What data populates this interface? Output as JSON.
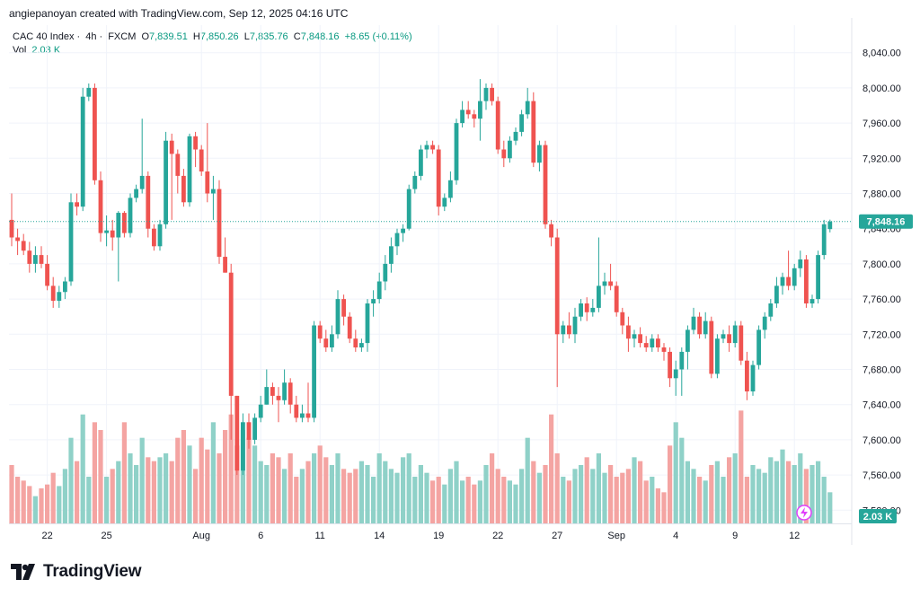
{
  "header": {
    "author": "angiepanoyan",
    "credit": "created with TradingView.com, Sep 12, 2025 04:16 UTC"
  },
  "legend": {
    "symbol": "CAC 40 Index",
    "interval": "4h",
    "source": "FXCM",
    "open_label": "O",
    "open": "7,839.51",
    "high_label": "H",
    "high": "7,850.26",
    "low_label": "L",
    "low": "7,835.76",
    "close_label": "C",
    "close": "7,848.16",
    "change": "+8.65 (+0.11%)",
    "vol_label": "Vol",
    "vol": "2.03 K"
  },
  "footer": {
    "brand": "TradingView"
  },
  "colors": {
    "up": "#26a69a",
    "down": "#ef5350",
    "up_vol": "#8fd1c8",
    "down_vol": "#f4a4a2",
    "grid": "#f0f3fa",
    "text": "#131722"
  },
  "chart_data": {
    "type": "candlestick",
    "instrument": "CAC 40 Index · 4h · FXCM",
    "ylim": [
      7505,
      8060
    ],
    "y_ticks": [
      7520,
      7560,
      7600,
      7640,
      7680,
      7720,
      7760,
      7800,
      7840,
      7880,
      7920,
      7960,
      8000,
      8040
    ],
    "y_tick_labels": [
      "7,520.00",
      "7,560.00",
      "7,600.00",
      "7,640.00",
      "7,680.00",
      "7,720.00",
      "7,760.00",
      "7,800.00",
      "7,840.00",
      "7,880.00",
      "7,920.00",
      "7,960.00",
      "8,000.00",
      "8,040.00"
    ],
    "x_tick_labels": [
      {
        "label": "22",
        "bar": 6
      },
      {
        "label": "25",
        "bar": 16
      },
      {
        "label": "Aug",
        "bar": 32
      },
      {
        "label": "6",
        "bar": 42
      },
      {
        "label": "11",
        "bar": 52
      },
      {
        "label": "14",
        "bar": 62
      },
      {
        "label": "19",
        "bar": 72
      },
      {
        "label": "22",
        "bar": 82
      },
      {
        "label": "27",
        "bar": 92
      },
      {
        "label": "Sep",
        "bar": 102
      },
      {
        "label": "4",
        "bar": 112
      },
      {
        "label": "9",
        "bar": 122
      },
      {
        "label": "12",
        "bar": 132
      }
    ],
    "last_price": 7848.16,
    "last_price_label": "7,848.16",
    "last_volume_label": "2.03 K",
    "grid": true,
    "candles": [
      {
        "o": 7850,
        "h": 7880,
        "l": 7820,
        "c": 7830,
        "v": 75
      },
      {
        "o": 7830,
        "h": 7840,
        "l": 7810,
        "c": 7826,
        "v": 60
      },
      {
        "o": 7826,
        "h": 7834,
        "l": 7810,
        "c": 7815,
        "v": 55
      },
      {
        "o": 7815,
        "h": 7825,
        "l": 7790,
        "c": 7800,
        "v": 48
      },
      {
        "o": 7800,
        "h": 7820,
        "l": 7790,
        "c": 7810,
        "v": 35
      },
      {
        "o": 7810,
        "h": 7820,
        "l": 7795,
        "c": 7800,
        "v": 45
      },
      {
        "o": 7800,
        "h": 7810,
        "l": 7770,
        "c": 7775,
        "v": 50
      },
      {
        "o": 7775,
        "h": 7785,
        "l": 7750,
        "c": 7758,
        "v": 65
      },
      {
        "o": 7758,
        "h": 7775,
        "l": 7750,
        "c": 7768,
        "v": 48
      },
      {
        "o": 7768,
        "h": 7785,
        "l": 7760,
        "c": 7780,
        "v": 70
      },
      {
        "o": 7780,
        "h": 7880,
        "l": 7775,
        "c": 7870,
        "v": 110
      },
      {
        "o": 7870,
        "h": 7880,
        "l": 7855,
        "c": 7865,
        "v": 80
      },
      {
        "o": 7865,
        "h": 8000,
        "l": 7860,
        "c": 7990,
        "v": 140
      },
      {
        "o": 7990,
        "h": 8005,
        "l": 7985,
        "c": 8000,
        "v": 60
      },
      {
        "o": 8000,
        "h": 8005,
        "l": 7890,
        "c": 7895,
        "v": 130
      },
      {
        "o": 7895,
        "h": 7905,
        "l": 7825,
        "c": 7835,
        "v": 120
      },
      {
        "o": 7835,
        "h": 7855,
        "l": 7820,
        "c": 7838,
        "v": 60
      },
      {
        "o": 7838,
        "h": 7850,
        "l": 7815,
        "c": 7830,
        "v": 70
      },
      {
        "o": 7830,
        "h": 7860,
        "l": 7780,
        "c": 7858,
        "v": 80
      },
      {
        "o": 7858,
        "h": 7860,
        "l": 7830,
        "c": 7835,
        "v": 130
      },
      {
        "o": 7835,
        "h": 7880,
        "l": 7830,
        "c": 7875,
        "v": 90
      },
      {
        "o": 7875,
        "h": 7890,
        "l": 7870,
        "c": 7885,
        "v": 75
      },
      {
        "o": 7885,
        "h": 7965,
        "l": 7880,
        "c": 7900,
        "v": 110
      },
      {
        "o": 7900,
        "h": 7905,
        "l": 7830,
        "c": 7840,
        "v": 85
      },
      {
        "o": 7840,
        "h": 7845,
        "l": 7815,
        "c": 7820,
        "v": 80
      },
      {
        "o": 7820,
        "h": 7850,
        "l": 7815,
        "c": 7845,
        "v": 85
      },
      {
        "o": 7845,
        "h": 7950,
        "l": 7840,
        "c": 7940,
        "v": 90
      },
      {
        "o": 7940,
        "h": 7948,
        "l": 7850,
        "c": 7925,
        "v": 80
      },
      {
        "o": 7925,
        "h": 7930,
        "l": 7880,
        "c": 7900,
        "v": 110
      },
      {
        "o": 7900,
        "h": 7908,
        "l": 7865,
        "c": 7870,
        "v": 120
      },
      {
        "o": 7870,
        "h": 7948,
        "l": 7865,
        "c": 7945,
        "v": 100
      },
      {
        "o": 7945,
        "h": 7950,
        "l": 7910,
        "c": 7930,
        "v": 70
      },
      {
        "o": 7930,
        "h": 7935,
        "l": 7900,
        "c": 7905,
        "v": 110
      },
      {
        "o": 7905,
        "h": 7960,
        "l": 7870,
        "c": 7880,
        "v": 95
      },
      {
        "o": 7880,
        "h": 7900,
        "l": 7850,
        "c": 7885,
        "v": 130
      },
      {
        "o": 7885,
        "h": 7895,
        "l": 7800,
        "c": 7808,
        "v": 90
      },
      {
        "o": 7808,
        "h": 7830,
        "l": 7790,
        "c": 7790,
        "v": 120
      },
      {
        "o": 7790,
        "h": 7800,
        "l": 7600,
        "c": 7650,
        "v": 140
      },
      {
        "o": 7650,
        "h": 7650,
        "l": 7560,
        "c": 7565,
        "v": 100
      },
      {
        "o": 7565,
        "h": 7630,
        "l": 7560,
        "c": 7620,
        "v": 120
      },
      {
        "o": 7620,
        "h": 7630,
        "l": 7590,
        "c": 7600,
        "v": 110
      },
      {
        "o": 7600,
        "h": 7630,
        "l": 7595,
        "c": 7625,
        "v": 100
      },
      {
        "o": 7625,
        "h": 7650,
        "l": 7620,
        "c": 7640,
        "v": 80
      },
      {
        "o": 7640,
        "h": 7680,
        "l": 7640,
        "c": 7660,
        "v": 75
      },
      {
        "o": 7660,
        "h": 7665,
        "l": 7640,
        "c": 7650,
        "v": 90
      },
      {
        "o": 7650,
        "h": 7660,
        "l": 7620,
        "c": 7645,
        "v": 85
      },
      {
        "o": 7645,
        "h": 7680,
        "l": 7640,
        "c": 7665,
        "v": 70
      },
      {
        "o": 7665,
        "h": 7670,
        "l": 7630,
        "c": 7640,
        "v": 90
      },
      {
        "o": 7640,
        "h": 7650,
        "l": 7620,
        "c": 7625,
        "v": 60
      },
      {
        "o": 7625,
        "h": 7640,
        "l": 7620,
        "c": 7630,
        "v": 70
      },
      {
        "o": 7630,
        "h": 7665,
        "l": 7620,
        "c": 7625,
        "v": 80
      },
      {
        "o": 7625,
        "h": 7735,
        "l": 7620,
        "c": 7730,
        "v": 90
      },
      {
        "o": 7730,
        "h": 7735,
        "l": 7710,
        "c": 7715,
        "v": 100
      },
      {
        "o": 7715,
        "h": 7725,
        "l": 7700,
        "c": 7705,
        "v": 85
      },
      {
        "o": 7705,
        "h": 7730,
        "l": 7700,
        "c": 7720,
        "v": 75
      },
      {
        "o": 7720,
        "h": 7770,
        "l": 7715,
        "c": 7760,
        "v": 90
      },
      {
        "o": 7760,
        "h": 7765,
        "l": 7730,
        "c": 7740,
        "v": 70
      },
      {
        "o": 7740,
        "h": 7745,
        "l": 7710,
        "c": 7715,
        "v": 65
      },
      {
        "o": 7715,
        "h": 7725,
        "l": 7700,
        "c": 7705,
        "v": 70
      },
      {
        "o": 7705,
        "h": 7715,
        "l": 7700,
        "c": 7710,
        "v": 80
      },
      {
        "o": 7710,
        "h": 7760,
        "l": 7700,
        "c": 7755,
        "v": 75
      },
      {
        "o": 7755,
        "h": 7770,
        "l": 7740,
        "c": 7760,
        "v": 60
      },
      {
        "o": 7760,
        "h": 7790,
        "l": 7755,
        "c": 7780,
        "v": 90
      },
      {
        "o": 7780,
        "h": 7810,
        "l": 7770,
        "c": 7800,
        "v": 80
      },
      {
        "o": 7800,
        "h": 7830,
        "l": 7790,
        "c": 7820,
        "v": 70
      },
      {
        "o": 7820,
        "h": 7840,
        "l": 7810,
        "c": 7835,
        "v": 65
      },
      {
        "o": 7835,
        "h": 7845,
        "l": 7825,
        "c": 7840,
        "v": 85
      },
      {
        "o": 7840,
        "h": 7890,
        "l": 7838,
        "c": 7885,
        "v": 90
      },
      {
        "o": 7885,
        "h": 7905,
        "l": 7880,
        "c": 7900,
        "v": 60
      },
      {
        "o": 7900,
        "h": 7935,
        "l": 7895,
        "c": 7930,
        "v": 75
      },
      {
        "o": 7930,
        "h": 7940,
        "l": 7920,
        "c": 7935,
        "v": 65
      },
      {
        "o": 7935,
        "h": 7940,
        "l": 7925,
        "c": 7930,
        "v": 55
      },
      {
        "o": 7930,
        "h": 7935,
        "l": 7855,
        "c": 7865,
        "v": 60
      },
      {
        "o": 7865,
        "h": 7880,
        "l": 7860,
        "c": 7875,
        "v": 50
      },
      {
        "o": 7875,
        "h": 7905,
        "l": 7870,
        "c": 7895,
        "v": 70
      },
      {
        "o": 7895,
        "h": 7965,
        "l": 7890,
        "c": 7960,
        "v": 80
      },
      {
        "o": 7960,
        "h": 7985,
        "l": 7955,
        "c": 7975,
        "v": 55
      },
      {
        "o": 7975,
        "h": 7985,
        "l": 7965,
        "c": 7970,
        "v": 60
      },
      {
        "o": 7970,
        "h": 7975,
        "l": 7955,
        "c": 7965,
        "v": 50
      },
      {
        "o": 7965,
        "h": 8010,
        "l": 7940,
        "c": 7985,
        "v": 55
      },
      {
        "o": 7985,
        "h": 8005,
        "l": 7975,
        "c": 8000,
        "v": 75
      },
      {
        "o": 8000,
        "h": 8005,
        "l": 7980,
        "c": 7985,
        "v": 90
      },
      {
        "o": 7985,
        "h": 7990,
        "l": 7925,
        "c": 7930,
        "v": 70
      },
      {
        "o": 7930,
        "h": 7940,
        "l": 7910,
        "c": 7920,
        "v": 60
      },
      {
        "o": 7920,
        "h": 7945,
        "l": 7915,
        "c": 7940,
        "v": 55
      },
      {
        "o": 7940,
        "h": 7955,
        "l": 7935,
        "c": 7950,
        "v": 50
      },
      {
        "o": 7950,
        "h": 7975,
        "l": 7945,
        "c": 7970,
        "v": 70
      },
      {
        "o": 7970,
        "h": 8000,
        "l": 7965,
        "c": 7985,
        "v": 110
      },
      {
        "o": 7985,
        "h": 7995,
        "l": 7910,
        "c": 7915,
        "v": 80
      },
      {
        "o": 7915,
        "h": 7940,
        "l": 7905,
        "c": 7935,
        "v": 65
      },
      {
        "o": 7935,
        "h": 7940,
        "l": 7840,
        "c": 7845,
        "v": 75
      },
      {
        "o": 7845,
        "h": 7850,
        "l": 7820,
        "c": 7830,
        "v": 140
      },
      {
        "o": 7830,
        "h": 7840,
        "l": 7660,
        "c": 7720,
        "v": 90
      },
      {
        "o": 7720,
        "h": 7735,
        "l": 7710,
        "c": 7730,
        "v": 60
      },
      {
        "o": 7730,
        "h": 7745,
        "l": 7715,
        "c": 7720,
        "v": 55
      },
      {
        "o": 7720,
        "h": 7750,
        "l": 7710,
        "c": 7740,
        "v": 70
      },
      {
        "o": 7740,
        "h": 7760,
        "l": 7735,
        "c": 7755,
        "v": 75
      },
      {
        "o": 7755,
        "h": 7762,
        "l": 7735,
        "c": 7745,
        "v": 85
      },
      {
        "o": 7745,
        "h": 7760,
        "l": 7740,
        "c": 7750,
        "v": 70
      },
      {
        "o": 7750,
        "h": 7830,
        "l": 7745,
        "c": 7775,
        "v": 90
      },
      {
        "o": 7775,
        "h": 7790,
        "l": 7765,
        "c": 7780,
        "v": 65
      },
      {
        "o": 7780,
        "h": 7800,
        "l": 7770,
        "c": 7775,
        "v": 75
      },
      {
        "o": 7775,
        "h": 7780,
        "l": 7740,
        "c": 7745,
        "v": 60
      },
      {
        "o": 7745,
        "h": 7750,
        "l": 7720,
        "c": 7730,
        "v": 65
      },
      {
        "o": 7730,
        "h": 7740,
        "l": 7700,
        "c": 7715,
        "v": 70
      },
      {
        "o": 7715,
        "h": 7725,
        "l": 7705,
        "c": 7720,
        "v": 85
      },
      {
        "o": 7720,
        "h": 7728,
        "l": 7705,
        "c": 7710,
        "v": 80
      },
      {
        "o": 7710,
        "h": 7718,
        "l": 7700,
        "c": 7705,
        "v": 55
      },
      {
        "o": 7705,
        "h": 7720,
        "l": 7700,
        "c": 7715,
        "v": 60
      },
      {
        "o": 7715,
        "h": 7720,
        "l": 7700,
        "c": 7705,
        "v": 45
      },
      {
        "o": 7705,
        "h": 7710,
        "l": 7690,
        "c": 7700,
        "v": 40
      },
      {
        "o": 7700,
        "h": 7705,
        "l": 7660,
        "c": 7670,
        "v": 100
      },
      {
        "o": 7670,
        "h": 7690,
        "l": 7650,
        "c": 7680,
        "v": 130
      },
      {
        "o": 7680,
        "h": 7705,
        "l": 7650,
        "c": 7700,
        "v": 110
      },
      {
        "o": 7700,
        "h": 7730,
        "l": 7680,
        "c": 7725,
        "v": 80
      },
      {
        "o": 7725,
        "h": 7750,
        "l": 7720,
        "c": 7740,
        "v": 70
      },
      {
        "o": 7740,
        "h": 7745,
        "l": 7715,
        "c": 7720,
        "v": 60
      },
      {
        "o": 7720,
        "h": 7745,
        "l": 7715,
        "c": 7735,
        "v": 55
      },
      {
        "o": 7735,
        "h": 7740,
        "l": 7670,
        "c": 7675,
        "v": 75
      },
      {
        "o": 7675,
        "h": 7720,
        "l": 7670,
        "c": 7715,
        "v": 80
      },
      {
        "o": 7715,
        "h": 7725,
        "l": 7710,
        "c": 7720,
        "v": 60
      },
      {
        "o": 7720,
        "h": 7730,
        "l": 7700,
        "c": 7710,
        "v": 85
      },
      {
        "o": 7710,
        "h": 7735,
        "l": 7705,
        "c": 7730,
        "v": 90
      },
      {
        "o": 7730,
        "h": 7735,
        "l": 7685,
        "c": 7690,
        "v": 145
      },
      {
        "o": 7690,
        "h": 7700,
        "l": 7645,
        "c": 7655,
        "v": 60
      },
      {
        "o": 7655,
        "h": 7690,
        "l": 7650,
        "c": 7685,
        "v": 75
      },
      {
        "o": 7685,
        "h": 7730,
        "l": 7680,
        "c": 7725,
        "v": 70
      },
      {
        "o": 7725,
        "h": 7745,
        "l": 7715,
        "c": 7740,
        "v": 65
      },
      {
        "o": 7740,
        "h": 7760,
        "l": 7735,
        "c": 7755,
        "v": 85
      },
      {
        "o": 7755,
        "h": 7785,
        "l": 7750,
        "c": 7775,
        "v": 80
      },
      {
        "o": 7775,
        "h": 7790,
        "l": 7765,
        "c": 7785,
        "v": 95
      },
      {
        "o": 7785,
        "h": 7815,
        "l": 7770,
        "c": 7775,
        "v": 80
      },
      {
        "o": 7775,
        "h": 7800,
        "l": 7770,
        "c": 7795,
        "v": 75
      },
      {
        "o": 7795,
        "h": 7815,
        "l": 7785,
        "c": 7805,
        "v": 90
      },
      {
        "o": 7805,
        "h": 7810,
        "l": 7750,
        "c": 7755,
        "v": 70
      },
      {
        "o": 7755,
        "h": 7765,
        "l": 7750,
        "c": 7760,
        "v": 75
      },
      {
        "o": 7760,
        "h": 7815,
        "l": 7755,
        "c": 7810,
        "v": 80
      },
      {
        "o": 7810,
        "h": 7850,
        "l": 7805,
        "c": 7845,
        "v": 60
      },
      {
        "o": 7839.51,
        "h": 7850.26,
        "l": 7835.76,
        "c": 7848.16,
        "v": 40
      }
    ]
  }
}
